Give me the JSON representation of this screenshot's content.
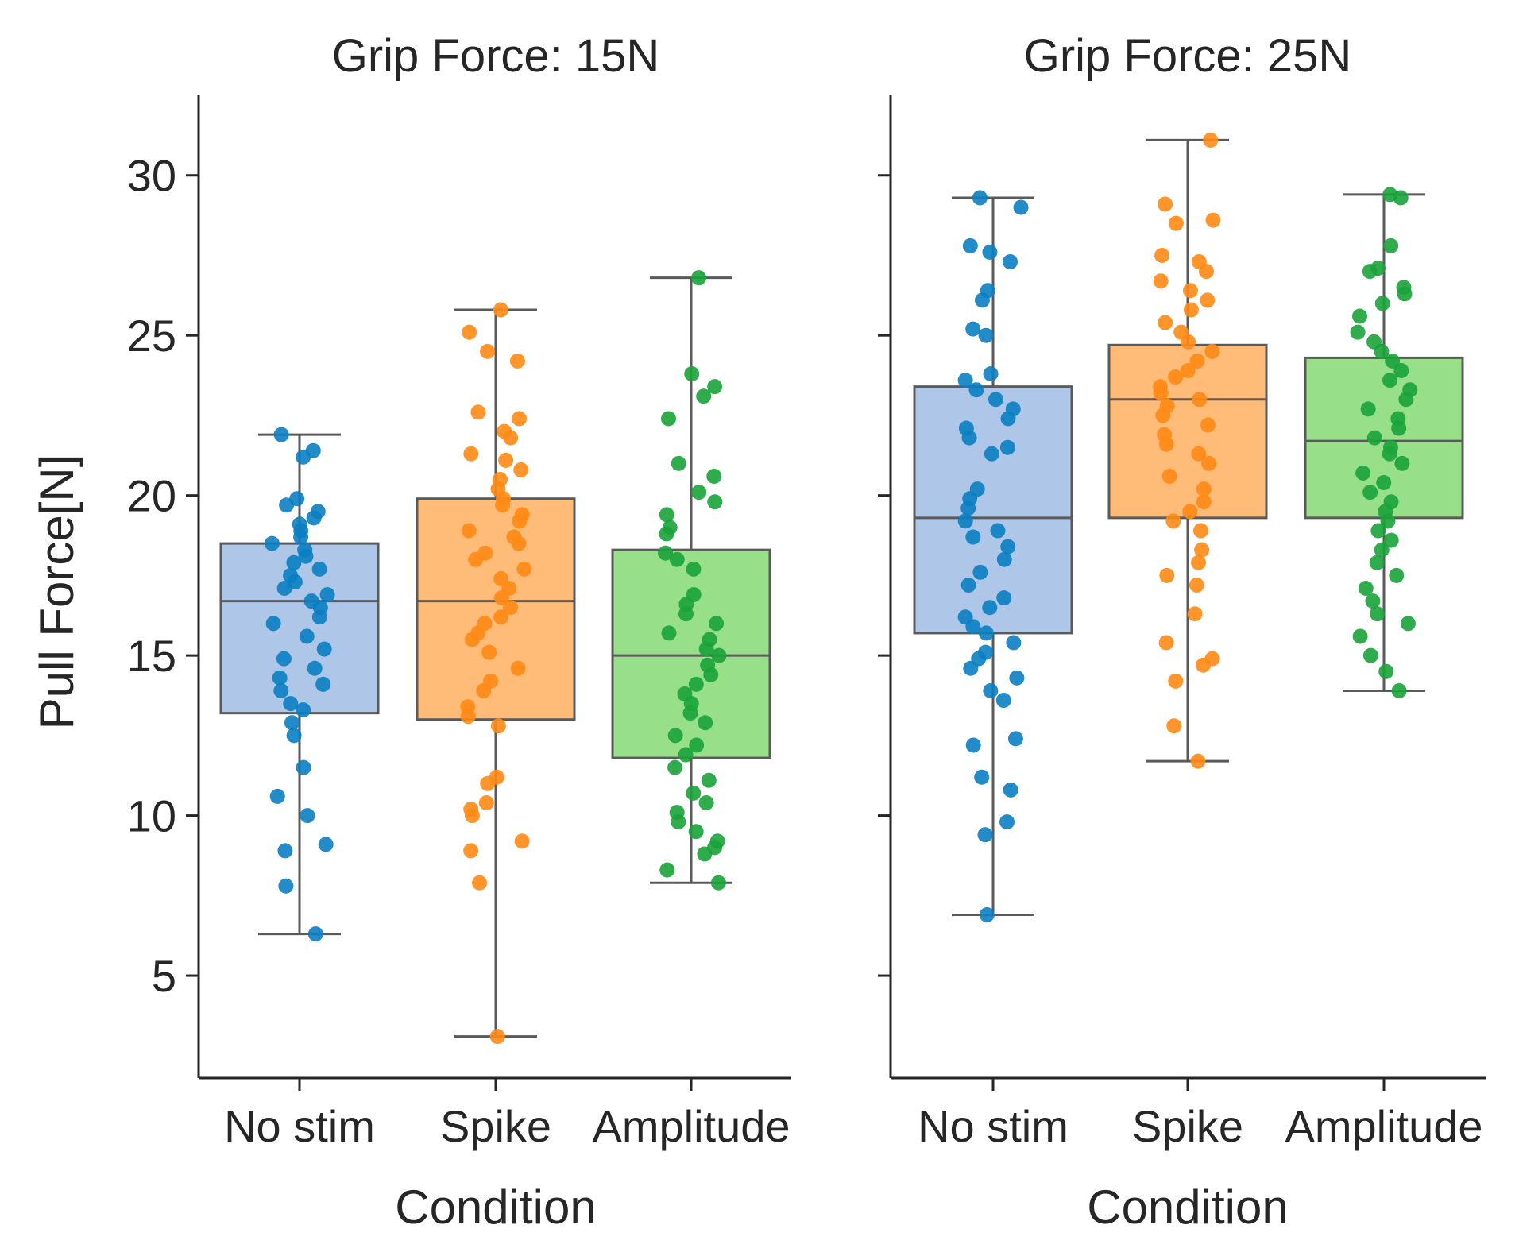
{
  "chart_data": {
    "type": "box",
    "ylabel": "Pull Force[N]",
    "ylim": [
      1.8,
      32.5
    ],
    "yticks": [
      5,
      10,
      15,
      20,
      25,
      30
    ],
    "categories": [
      "No stim",
      "Spike",
      "Amplitude"
    ],
    "xlabel": "Condition",
    "colors": {
      "box_fill": [
        "#aec7e8",
        "#ffbb78",
        "#98df8a"
      ],
      "points": [
        "#1f77b4",
        "#ff7f0e",
        "#2ca02c"
      ],
      "point_pure": [
        "#0a7ec2",
        "#ff8a14",
        "#1aa33a"
      ]
    },
    "panels": [
      {
        "title": "Grip Force: 15N",
        "boxes": [
          {
            "category": "No stim",
            "q1": 13.2,
            "median": 16.7,
            "q3": 18.5,
            "whisker_low": 6.3,
            "whisker_high": 21.9,
            "points": [
              21.9,
              21.4,
              21.2,
              19.9,
              19.7,
              19.5,
              19.3,
              19.1,
              18.9,
              18.7,
              18.5,
              18.3,
              18.1,
              17.9,
              17.7,
              17.5,
              17.3,
              17.1,
              16.9,
              16.7,
              16.5,
              16.2,
              16.0,
              15.6,
              15.2,
              14.9,
              14.6,
              14.3,
              14.1,
              13.9,
              13.5,
              13.3,
              12.9,
              12.5,
              11.5,
              10.6,
              10.0,
              9.1,
              8.9,
              7.8,
              6.3
            ]
          },
          {
            "category": "Spike",
            "q1": 13.0,
            "median": 16.7,
            "q3": 19.9,
            "whisker_low": 3.1,
            "whisker_high": 25.8,
            "points": [
              25.8,
              25.1,
              24.5,
              24.2,
              22.6,
              22.4,
              22.0,
              21.8,
              21.3,
              21.1,
              20.8,
              20.5,
              20.2,
              19.9,
              19.7,
              19.4,
              19.2,
              18.9,
              18.7,
              18.5,
              18.2,
              18.0,
              17.7,
              17.4,
              17.1,
              16.8,
              16.5,
              16.2,
              16.0,
              15.7,
              15.5,
              15.1,
              14.6,
              14.2,
              13.9,
              13.4,
              13.1,
              12.8,
              11.2,
              11.0,
              10.4,
              10.2,
              10.0,
              9.2,
              8.9,
              7.9,
              3.1
            ]
          },
          {
            "category": "Amplitude",
            "q1": 11.8,
            "median": 15.0,
            "q3": 18.3,
            "whisker_low": 7.9,
            "whisker_high": 26.8,
            "points": [
              26.8,
              23.8,
              23.4,
              23.1,
              22.4,
              21.0,
              20.6,
              20.1,
              19.8,
              19.4,
              19.0,
              18.8,
              18.2,
              18.0,
              17.7,
              16.9,
              16.6,
              16.3,
              16.0,
              15.7,
              15.5,
              15.2,
              15.0,
              14.7,
              14.4,
              14.1,
              13.8,
              13.5,
              13.2,
              12.9,
              12.5,
              12.2,
              11.9,
              11.5,
              11.1,
              10.7,
              10.4,
              10.1,
              9.8,
              9.5,
              9.2,
              9.0,
              8.8,
              8.3,
              7.9
            ]
          }
        ]
      },
      {
        "title": "Grip Force: 25N",
        "boxes": [
          {
            "category": "No stim",
            "q1": 15.7,
            "median": 19.3,
            "q3": 23.4,
            "whisker_low": 6.9,
            "whisker_high": 29.3,
            "points": [
              29.3,
              29.0,
              27.8,
              27.6,
              27.3,
              26.4,
              26.1,
              25.2,
              25.0,
              23.8,
              23.6,
              23.3,
              23.0,
              22.7,
              22.4,
              22.1,
              21.8,
              21.5,
              21.3,
              20.2,
              19.9,
              19.6,
              19.2,
              18.9,
              18.7,
              18.4,
              18.0,
              17.6,
              17.2,
              16.8,
              16.5,
              16.2,
              15.9,
              15.7,
              15.4,
              15.1,
              14.9,
              14.6,
              14.3,
              13.9,
              13.6,
              12.4,
              12.2,
              11.2,
              10.8,
              9.8,
              9.4,
              6.9
            ]
          },
          {
            "category": "Spike",
            "q1": 19.3,
            "median": 23.0,
            "q3": 24.7,
            "whisker_low": 11.7,
            "whisker_high": 31.1,
            "points": [
              31.1,
              29.1,
              28.6,
              28.5,
              27.5,
              27.3,
              27.0,
              26.7,
              26.4,
              26.1,
              25.8,
              25.4,
              25.1,
              24.8,
              24.5,
              24.2,
              23.9,
              23.7,
              23.4,
              23.2,
              23.0,
              22.8,
              22.5,
              22.2,
              21.9,
              21.6,
              21.3,
              21.0,
              20.6,
              20.2,
              19.8,
              19.5,
              19.2,
              18.9,
              18.3,
              17.9,
              17.5,
              17.2,
              16.3,
              15.4,
              14.9,
              14.7,
              14.2,
              12.8,
              11.7
            ]
          },
          {
            "category": "Amplitude",
            "q1": 19.3,
            "median": 21.7,
            "q3": 24.3,
            "whisker_low": 13.9,
            "whisker_high": 29.4,
            "points": [
              29.4,
              29.3,
              27.8,
              27.1,
              27.0,
              26.5,
              26.3,
              26.0,
              25.6,
              25.1,
              24.8,
              24.5,
              24.2,
              23.9,
              23.6,
              23.3,
              23.0,
              22.7,
              22.4,
              22.1,
              21.8,
              21.5,
              21.3,
              21.0,
              20.7,
              20.4,
              20.1,
              19.8,
              19.5,
              19.2,
              18.9,
              18.6,
              18.3,
              17.9,
              17.5,
              17.1,
              16.7,
              16.3,
              16.0,
              15.6,
              15.0,
              14.5,
              13.9
            ]
          }
        ]
      }
    ]
  }
}
